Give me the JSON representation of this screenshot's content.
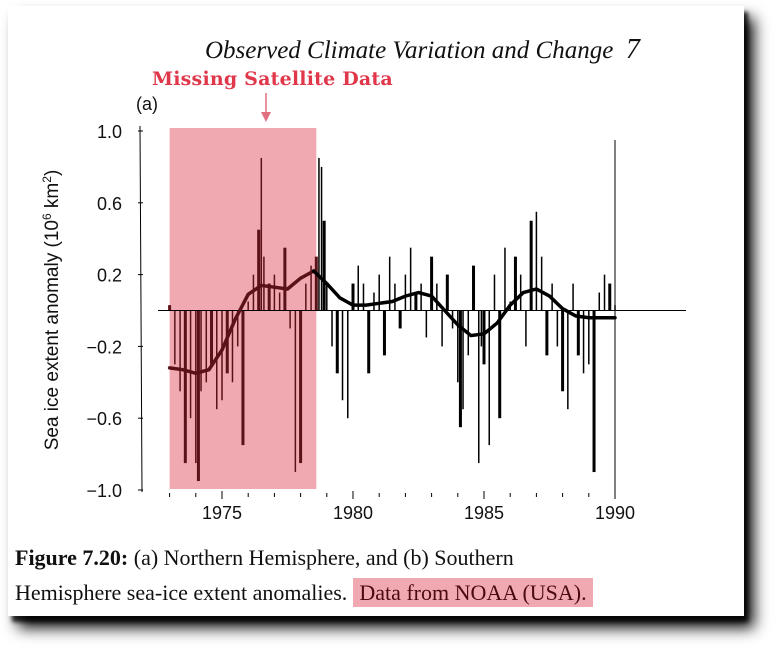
{
  "header": {
    "running_title": "Observed Climate Variation and Change",
    "page_number": "7"
  },
  "annotation": {
    "text": "Missing Satellite Data",
    "color": "#e0374a",
    "highlight_color": "#f0a9b0",
    "span_years": [
      1973.0,
      1978.6
    ]
  },
  "panel_label": "(a)",
  "caption": {
    "figure_label": "Figure 7.20:",
    "line1_text": "(a)  Northern Hemisphere, and  (b) Southern",
    "line2_text": "Hemisphere sea-ice extent anomalies.",
    "highlighted_text": "Data from NOAA (USA)."
  },
  "chart_data": {
    "type": "bar",
    "title": "",
    "xlabel": "",
    "ylabel": "Sea ice extent anomaly (10⁶ km²)",
    "ylabel_parts": [
      "Sea ice extent anomaly (10",
      "6",
      " km",
      "2",
      ")"
    ],
    "xlim": [
      1972.8,
      1990.1
    ],
    "ylim": [
      -1.0,
      1.0
    ],
    "yticks": [
      1.0,
      0.6,
      0.2,
      -0.2,
      -0.6,
      -1.0
    ],
    "ytick_labels": [
      "1.0",
      "0.6",
      "0.2",
      "−0.2",
      "−0.6",
      "−1.0"
    ],
    "xticks": [
      1975,
      1980,
      1985,
      1990
    ],
    "xtick_labels": [
      "1975",
      "1980",
      "1985",
      "1990"
    ],
    "minor_xticks": [
      1973,
      1974,
      1976,
      1977,
      1978,
      1979,
      1981,
      1982,
      1983,
      1984,
      1986,
      1987,
      1988,
      1989
    ],
    "grid": false,
    "series": [
      {
        "name": "Monthly anomaly",
        "kind": "bars",
        "color": "#000000",
        "x": [
          1973.0,
          1973.2,
          1973.4,
          1973.6,
          1973.8,
          1974.0,
          1974.1,
          1974.2,
          1974.4,
          1974.6,
          1974.8,
          1975.0,
          1975.2,
          1975.4,
          1975.6,
          1975.8,
          1976.0,
          1976.2,
          1976.4,
          1976.5,
          1976.6,
          1976.8,
          1977.0,
          1977.2,
          1977.4,
          1977.6,
          1977.8,
          1978.0,
          1978.2,
          1978.4,
          1978.6,
          1978.7,
          1978.8,
          1978.9,
          1979.0,
          1979.2,
          1979.4,
          1979.6,
          1979.8,
          1980.0,
          1980.2,
          1980.4,
          1980.6,
          1980.8,
          1981.0,
          1981.2,
          1981.4,
          1981.6,
          1981.8,
          1982.0,
          1982.2,
          1982.4,
          1982.6,
          1982.8,
          1983.0,
          1983.2,
          1983.4,
          1983.6,
          1983.8,
          1984.0,
          1984.1,
          1984.2,
          1984.4,
          1984.6,
          1984.8,
          1984.9,
          1985.0,
          1985.2,
          1985.4,
          1985.6,
          1985.8,
          1986.0,
          1986.2,
          1986.4,
          1986.6,
          1986.8,
          1987.0,
          1987.2,
          1987.4,
          1987.6,
          1987.8,
          1988.0,
          1988.2,
          1988.4,
          1988.6,
          1988.8,
          1989.0,
          1989.2,
          1989.4,
          1989.6,
          1989.8,
          1990.0
        ],
        "values": [
          0.03,
          -0.3,
          -0.45,
          -0.85,
          -0.6,
          -0.85,
          -0.95,
          -0.45,
          -0.4,
          -0.3,
          -0.55,
          -0.5,
          -0.35,
          -0.4,
          -0.2,
          -0.75,
          0.05,
          0.2,
          0.45,
          0.85,
          0.3,
          0.15,
          0.2,
          0.1,
          0.35,
          -0.1,
          -0.9,
          -0.85,
          0.15,
          0.25,
          0.3,
          0.85,
          0.8,
          0.5,
          0.15,
          -0.2,
          -0.35,
          -0.5,
          -0.6,
          0.15,
          0.25,
          0.15,
          -0.35,
          0.1,
          0.2,
          -0.25,
          0.3,
          0.15,
          -0.1,
          0.2,
          0.35,
          0.1,
          0.15,
          -0.15,
          0.3,
          0.15,
          -0.2,
          0.2,
          -0.1,
          -0.4,
          -0.65,
          -0.55,
          -0.25,
          0.25,
          -0.85,
          -0.2,
          -0.3,
          -0.75,
          0.2,
          -0.6,
          0.35,
          0.05,
          0.3,
          0.2,
          -0.2,
          0.5,
          0.55,
          0.3,
          -0.25,
          0.15,
          -0.2,
          -0.45,
          -0.55,
          0.15,
          -0.25,
          -0.35,
          -0.3,
          -0.9,
          0.1,
          0.2,
          0.15,
          0.03
        ]
      },
      {
        "name": "Smoothed curve",
        "kind": "line",
        "color": "#000000",
        "x": [
          1973.0,
          1973.5,
          1974.0,
          1974.5,
          1975.0,
          1975.5,
          1976.0,
          1976.5,
          1977.0,
          1977.5,
          1978.0,
          1978.5,
          1979.0,
          1979.5,
          1980.0,
          1980.5,
          1981.0,
          1981.5,
          1982.0,
          1982.5,
          1983.0,
          1983.5,
          1984.0,
          1984.5,
          1985.0,
          1985.5,
          1986.0,
          1986.5,
          1987.0,
          1987.5,
          1988.0,
          1988.5,
          1989.0,
          1989.5,
          1990.0
        ],
        "values": [
          -0.32,
          -0.33,
          -0.35,
          -0.33,
          -0.22,
          -0.05,
          0.09,
          0.14,
          0.13,
          0.12,
          0.18,
          0.22,
          0.15,
          0.07,
          0.03,
          0.03,
          0.04,
          0.05,
          0.08,
          0.1,
          0.08,
          0.0,
          -0.08,
          -0.14,
          -0.13,
          -0.07,
          0.03,
          0.1,
          0.12,
          0.08,
          0.01,
          -0.03,
          -0.04,
          -0.04,
          -0.04
        ]
      }
    ]
  }
}
